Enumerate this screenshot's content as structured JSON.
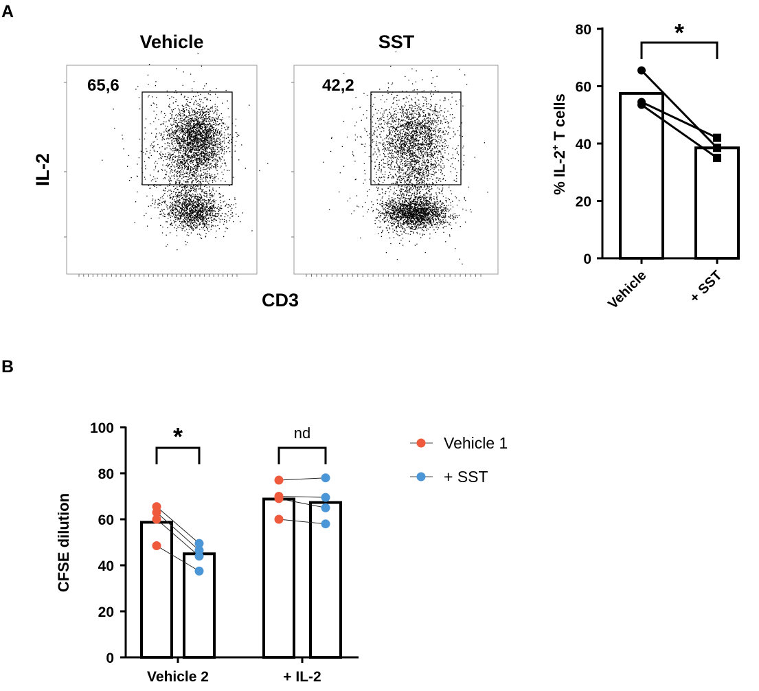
{
  "panels": {
    "A": {
      "label": "A"
    },
    "B": {
      "label": "B"
    }
  },
  "flow": {
    "y_axis_label": "IL-2",
    "x_axis_label": "CD3",
    "plots": [
      {
        "title": "Vehicle",
        "gate_percent": "65,6"
      },
      {
        "title": "SST",
        "gate_percent": "42,2"
      }
    ]
  },
  "chart_data": [
    {
      "type": "bar",
      "panel": "A",
      "title": "",
      "ylabel": "% IL-2+ T cells",
      "ylabel_main": "% IL-2",
      "ylabel_sup": "+",
      "ylabel_rest": " T cells",
      "ylim": [
        0,
        80
      ],
      "yticks": [
        0,
        20,
        40,
        60,
        80
      ],
      "categories": [
        "Vehicle",
        "+ SST"
      ],
      "values": [
        57.5,
        38.5
      ],
      "paired_points": [
        [
          65.5,
          38.5
        ],
        [
          54.5,
          42.0
        ],
        [
          53.5,
          35.0
        ]
      ],
      "significance": {
        "label": "*",
        "between": [
          0,
          1
        ]
      }
    },
    {
      "type": "bar",
      "panel": "B",
      "title": "",
      "ylabel": "CFSE dilution",
      "ylim": [
        0,
        100
      ],
      "yticks": [
        0,
        20,
        40,
        60,
        80,
        100
      ],
      "groups": [
        "Vehicle 2",
        "+ IL-2"
      ],
      "series": [
        {
          "name": "Vehicle 1",
          "color": "#ef5a3c",
          "values": [
            58.7,
            68.8
          ]
        },
        {
          "name": "+ SST",
          "color": "#4b96d6",
          "values": [
            45.0,
            67.3
          ]
        }
      ],
      "paired_points": [
        [
          [
            65.5,
            49.5
          ],
          [
            63.0,
            46.5
          ],
          [
            60.0,
            44.0
          ],
          [
            48.5,
            37.5
          ]
        ],
        [
          [
            77.0,
            78.0
          ],
          [
            70.0,
            69.5
          ],
          [
            69.0,
            65.0
          ],
          [
            60.0,
            58.0
          ]
        ]
      ],
      "significance": [
        {
          "group": 0,
          "label": "*"
        },
        {
          "group": 1,
          "label": "nd"
        }
      ],
      "legend": {
        "position": "top-right"
      }
    }
  ]
}
